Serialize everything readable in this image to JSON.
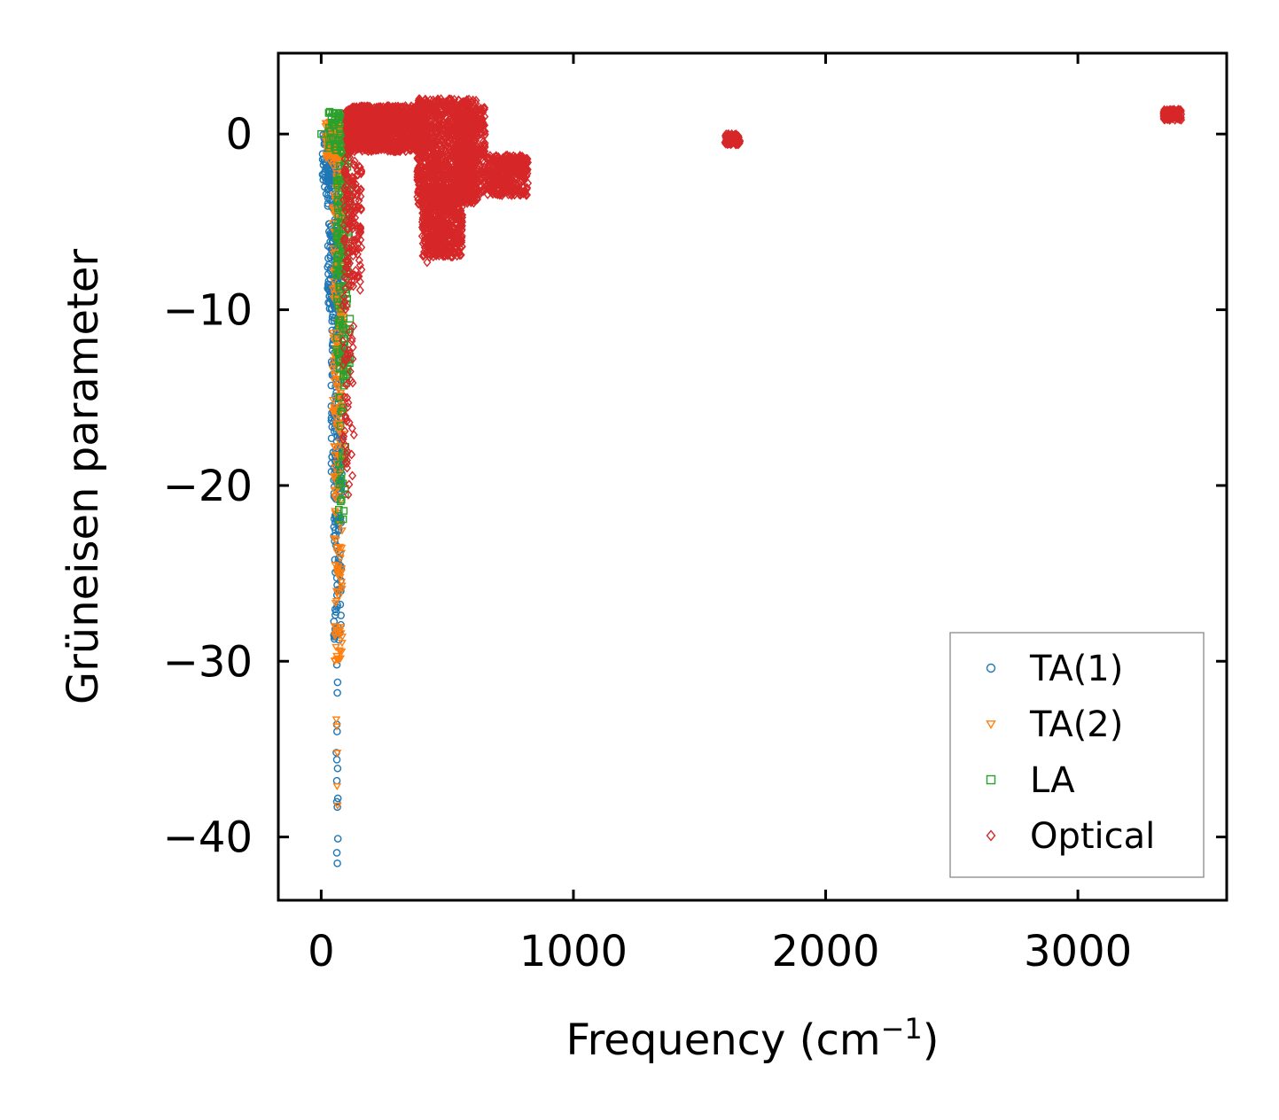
{
  "chart_data": {
    "type": "scatter",
    "title": "",
    "xlabel_main": "Frequency (cm",
    "xlabel_sup": "−1",
    "xlabel_end": ")",
    "ylabel": "Grüneisen parameter",
    "xlim": [
      -170,
      3590
    ],
    "ylim": [
      -43.6,
      4.6
    ],
    "xticks": [
      0,
      1000,
      2000,
      3000
    ],
    "xtick_labels": [
      "0",
      "1000",
      "2000",
      "3000"
    ],
    "yticks": [
      0,
      -10,
      -20,
      -30,
      -40
    ],
    "ytick_labels": [
      "0",
      "−10",
      "−20",
      "−30",
      "−40"
    ],
    "grid": false,
    "legend_position": "bottom-right",
    "series": [
      {
        "name": "TA(1)",
        "color": "#1f77b4",
        "marker": "circle",
        "clusters": [
          {
            "x": [
              5,
              40
            ],
            "y": [
              -3.5,
              0.2
            ],
            "n": 60
          },
          {
            "x": [
              25,
              75
            ],
            "y": [
              -10,
              -1
            ],
            "n": 180
          },
          {
            "x": [
              40,
              85
            ],
            "y": [
              -20,
              -8
            ],
            "n": 160
          },
          {
            "x": [
              50,
              80
            ],
            "y": [
              -29,
              -18
            ],
            "n": 90
          }
        ],
        "points": [
          [
            40,
            -1.5
          ],
          [
            48,
            -2.2
          ],
          [
            55,
            -3.4
          ],
          [
            62,
            -30.2
          ],
          [
            65,
            -31.2
          ],
          [
            64,
            -31.8
          ],
          [
            62,
            -33.6
          ],
          [
            63,
            -34.0
          ],
          [
            60,
            -35.2
          ],
          [
            62,
            -35.6
          ],
          [
            65,
            -36.1
          ],
          [
            62,
            -36.8
          ],
          [
            66,
            -37.8
          ],
          [
            62,
            -38.0
          ],
          [
            64,
            -38.3
          ],
          [
            66,
            -40.1
          ],
          [
            62,
            -40.9
          ],
          [
            64,
            -41.5
          ]
        ]
      },
      {
        "name": "TA(2)",
        "color": "#ff7f0e",
        "marker": "triangle-down",
        "clusters": [
          {
            "x": [
              15,
              95
            ],
            "y": [
              -1.5,
              0.8
            ],
            "n": 120
          },
          {
            "x": [
              45,
              90
            ],
            "y": [
              -16,
              -1
            ],
            "n": 150
          },
          {
            "x": [
              50,
              85
            ],
            "y": [
              -30,
              -16
            ],
            "n": 90
          }
        ],
        "points": [
          [
            60,
            -33.3
          ],
          [
            62,
            -33.7
          ],
          [
            64,
            -35.2
          ],
          [
            63,
            -37.1
          ],
          [
            65,
            -38.2
          ]
        ]
      },
      {
        "name": "LA",
        "color": "#2ca02c",
        "marker": "square",
        "clusters": [
          {
            "x": [
              30,
              110
            ],
            "y": [
              -1,
              1.3
            ],
            "n": 60
          },
          {
            "x": [
              60,
              115
            ],
            "y": [
              -14,
              -1
            ],
            "n": 150
          },
          {
            "x": [
              70,
              100
            ],
            "y": [
              -22,
              -12
            ],
            "n": 40
          }
        ],
        "points": [
          [
            30,
            1.2
          ],
          [
            45,
            1.2
          ],
          [
            70,
            1.2
          ],
          [
            85,
            1.1
          ],
          [
            0,
            0
          ]
        ]
      },
      {
        "name": "Optical",
        "color": "#d62728",
        "marker": "diamond",
        "clusters": [
          {
            "x": [
              100,
              420
            ],
            "y": [
              -1,
              1.6
            ],
            "n": 1200
          },
          {
            "x": [
              380,
              620
            ],
            "y": [
              -4,
              2.0
            ],
            "n": 1100
          },
          {
            "x": [
              400,
              560
            ],
            "y": [
              -7,
              -3
            ],
            "n": 600
          },
          {
            "x": [
              530,
              650
            ],
            "y": [
              -3.4,
              1.5
            ],
            "n": 400
          },
          {
            "x": [
              660,
              820
            ],
            "y": [
              -3.5,
              -1.2
            ],
            "n": 350
          },
          {
            "x": [
              90,
              160
            ],
            "y": [
              -9,
              -1
            ],
            "n": 160
          },
          {
            "x": [
              85,
              130
            ],
            "y": [
              -21,
              -9
            ],
            "n": 50
          },
          {
            "x": [
              1600,
              1660
            ],
            "y": [
              -0.6,
              0.0
            ],
            "n": 120
          },
          {
            "x": [
              3340,
              3410
            ],
            "y": [
              0.8,
              1.4
            ],
            "n": 120
          }
        ],
        "points": [
          [
            420,
            -7.3
          ],
          [
            430,
            -7.0
          ],
          [
            100,
            1.3
          ],
          [
            115,
            1.4
          ]
        ]
      }
    ]
  }
}
